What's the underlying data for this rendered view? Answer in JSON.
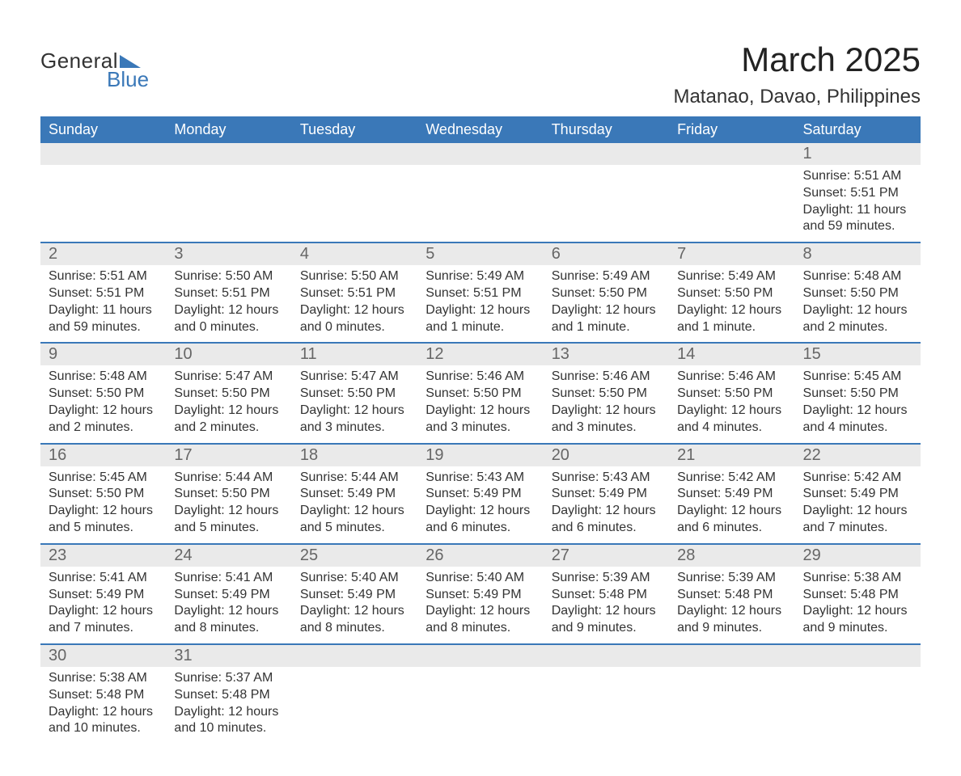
{
  "logo": {
    "text_general": "General",
    "text_blue": "Blue",
    "flag_color": "#3a78b8"
  },
  "title": "March 2025",
  "location": "Matanao, Davao, Philippines",
  "header_bg": "#3a78b8",
  "header_fg": "#ffffff",
  "daynum_bg": "#eaeaea",
  "border_color": "#3a78b8",
  "days_of_week": [
    "Sunday",
    "Monday",
    "Tuesday",
    "Wednesday",
    "Thursday",
    "Friday",
    "Saturday"
  ],
  "labels": {
    "sunrise": "Sunrise",
    "sunset": "Sunset",
    "daylight": "Daylight"
  },
  "weeks": [
    [
      null,
      null,
      null,
      null,
      null,
      null,
      {
        "n": "1",
        "sunrise": "5:51 AM",
        "sunset": "5:51 PM",
        "daylight": "11 hours and 59 minutes."
      }
    ],
    [
      {
        "n": "2",
        "sunrise": "5:51 AM",
        "sunset": "5:51 PM",
        "daylight": "11 hours and 59 minutes."
      },
      {
        "n": "3",
        "sunrise": "5:50 AM",
        "sunset": "5:51 PM",
        "daylight": "12 hours and 0 minutes."
      },
      {
        "n": "4",
        "sunrise": "5:50 AM",
        "sunset": "5:51 PM",
        "daylight": "12 hours and 0 minutes."
      },
      {
        "n": "5",
        "sunrise": "5:49 AM",
        "sunset": "5:51 PM",
        "daylight": "12 hours and 1 minute."
      },
      {
        "n": "6",
        "sunrise": "5:49 AM",
        "sunset": "5:50 PM",
        "daylight": "12 hours and 1 minute."
      },
      {
        "n": "7",
        "sunrise": "5:49 AM",
        "sunset": "5:50 PM",
        "daylight": "12 hours and 1 minute."
      },
      {
        "n": "8",
        "sunrise": "5:48 AM",
        "sunset": "5:50 PM",
        "daylight": "12 hours and 2 minutes."
      }
    ],
    [
      {
        "n": "9",
        "sunrise": "5:48 AM",
        "sunset": "5:50 PM",
        "daylight": "12 hours and 2 minutes."
      },
      {
        "n": "10",
        "sunrise": "5:47 AM",
        "sunset": "5:50 PM",
        "daylight": "12 hours and 2 minutes."
      },
      {
        "n": "11",
        "sunrise": "5:47 AM",
        "sunset": "5:50 PM",
        "daylight": "12 hours and 3 minutes."
      },
      {
        "n": "12",
        "sunrise": "5:46 AM",
        "sunset": "5:50 PM",
        "daylight": "12 hours and 3 minutes."
      },
      {
        "n": "13",
        "sunrise": "5:46 AM",
        "sunset": "5:50 PM",
        "daylight": "12 hours and 3 minutes."
      },
      {
        "n": "14",
        "sunrise": "5:46 AM",
        "sunset": "5:50 PM",
        "daylight": "12 hours and 4 minutes."
      },
      {
        "n": "15",
        "sunrise": "5:45 AM",
        "sunset": "5:50 PM",
        "daylight": "12 hours and 4 minutes."
      }
    ],
    [
      {
        "n": "16",
        "sunrise": "5:45 AM",
        "sunset": "5:50 PM",
        "daylight": "12 hours and 5 minutes."
      },
      {
        "n": "17",
        "sunrise": "5:44 AM",
        "sunset": "5:50 PM",
        "daylight": "12 hours and 5 minutes."
      },
      {
        "n": "18",
        "sunrise": "5:44 AM",
        "sunset": "5:49 PM",
        "daylight": "12 hours and 5 minutes."
      },
      {
        "n": "19",
        "sunrise": "5:43 AM",
        "sunset": "5:49 PM",
        "daylight": "12 hours and 6 minutes."
      },
      {
        "n": "20",
        "sunrise": "5:43 AM",
        "sunset": "5:49 PM",
        "daylight": "12 hours and 6 minutes."
      },
      {
        "n": "21",
        "sunrise": "5:42 AM",
        "sunset": "5:49 PM",
        "daylight": "12 hours and 6 minutes."
      },
      {
        "n": "22",
        "sunrise": "5:42 AM",
        "sunset": "5:49 PM",
        "daylight": "12 hours and 7 minutes."
      }
    ],
    [
      {
        "n": "23",
        "sunrise": "5:41 AM",
        "sunset": "5:49 PM",
        "daylight": "12 hours and 7 minutes."
      },
      {
        "n": "24",
        "sunrise": "5:41 AM",
        "sunset": "5:49 PM",
        "daylight": "12 hours and 8 minutes."
      },
      {
        "n": "25",
        "sunrise": "5:40 AM",
        "sunset": "5:49 PM",
        "daylight": "12 hours and 8 minutes."
      },
      {
        "n": "26",
        "sunrise": "5:40 AM",
        "sunset": "5:49 PM",
        "daylight": "12 hours and 8 minutes."
      },
      {
        "n": "27",
        "sunrise": "5:39 AM",
        "sunset": "5:48 PM",
        "daylight": "12 hours and 9 minutes."
      },
      {
        "n": "28",
        "sunrise": "5:39 AM",
        "sunset": "5:48 PM",
        "daylight": "12 hours and 9 minutes."
      },
      {
        "n": "29",
        "sunrise": "5:38 AM",
        "sunset": "5:48 PM",
        "daylight": "12 hours and 9 minutes."
      }
    ],
    [
      {
        "n": "30",
        "sunrise": "5:38 AM",
        "sunset": "5:48 PM",
        "daylight": "12 hours and 10 minutes."
      },
      {
        "n": "31",
        "sunrise": "5:37 AM",
        "sunset": "5:48 PM",
        "daylight": "12 hours and 10 minutes."
      },
      null,
      null,
      null,
      null,
      null
    ]
  ]
}
